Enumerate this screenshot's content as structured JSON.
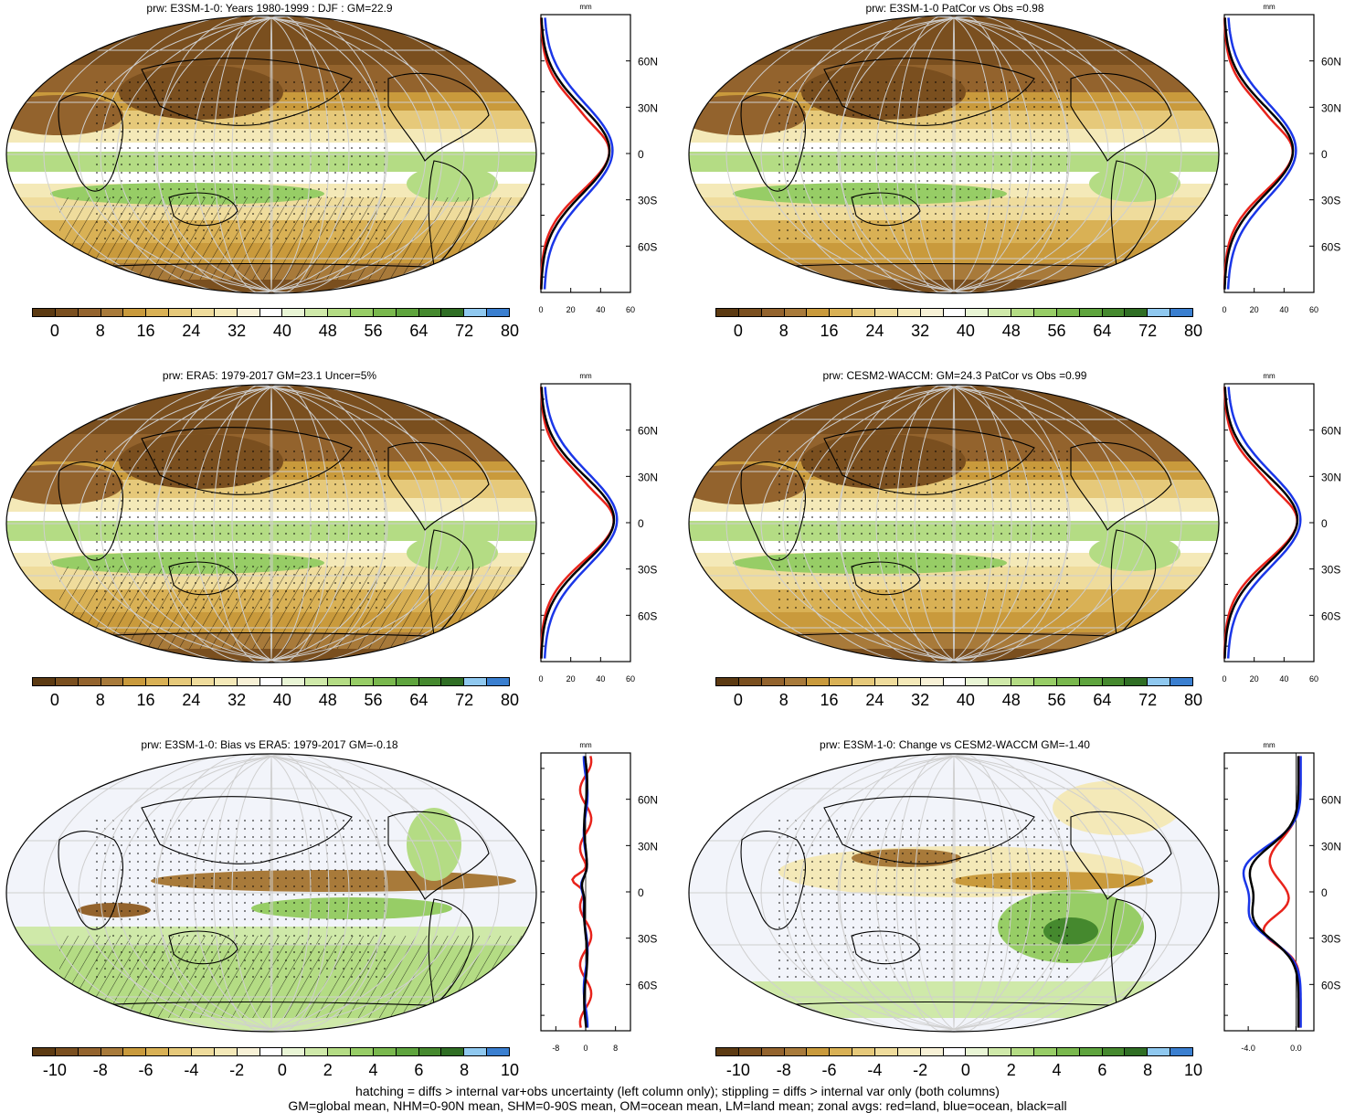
{
  "colors": {
    "abs_scale": [
      "#5c3a12",
      "#7a4f1f",
      "#93632d",
      "#a87a3a",
      "#c99a3c",
      "#d9b155",
      "#e6c97a",
      "#efdc9c",
      "#f4e9b8",
      "#f7f1d6",
      "#ffffff",
      "#e9f5d5",
      "#cfe9a9",
      "#b4dc84",
      "#97cd66",
      "#79b84d",
      "#5ea43d",
      "#45892e",
      "#2f6e24",
      "#8fc8ef",
      "#3a7fd0"
    ],
    "diff_scale": [
      "#5c3a12",
      "#7a4f1f",
      "#93632d",
      "#a87a3a",
      "#c99a3c",
      "#d9b155",
      "#e6c97a",
      "#efdc9c",
      "#f4e9b8",
      "#f7f1d6",
      "#ffffff",
      "#e9f5d5",
      "#cfe9a9",
      "#b4dc84",
      "#97cd66",
      "#79b84d",
      "#5ea43d",
      "#45892e",
      "#2f6e24",
      "#8fc8ef",
      "#3a7fd0"
    ],
    "land": "#e8231b",
    "ocean": "#1a36e8",
    "all": "#000000"
  },
  "panels": [
    {
      "id": "p1",
      "title": "prw: E3SM-1-0: Years 1980-1999 : DJF : GM=22.9",
      "scale": "abs",
      "cb_labels": [
        "0",
        "8",
        "16",
        "24",
        "32",
        "40",
        "48",
        "56",
        "64",
        "72",
        "80"
      ],
      "zonal_unit": "mm",
      "zonal_ticks": [
        "0",
        "20",
        "40",
        "60"
      ],
      "lat_labels": [
        "60N",
        "30N",
        "0",
        "30S",
        "60S"
      ]
    },
    {
      "id": "p2",
      "title": "prw: E3SM-1-0 PatCor vs Obs =0.98",
      "scale": "abs",
      "cb_labels": [
        "0",
        "8",
        "16",
        "24",
        "32",
        "40",
        "48",
        "56",
        "64",
        "72",
        "80"
      ],
      "zonal_unit": "mm",
      "zonal_ticks": [
        "0",
        "20",
        "40",
        "60"
      ],
      "lat_labels": [
        "60N",
        "30N",
        "0",
        "30S",
        "60S"
      ]
    },
    {
      "id": "p3",
      "title": "prw: ERA5: 1979-2017 GM=23.1 Uncer=5%",
      "scale": "abs",
      "cb_labels": [
        "0",
        "8",
        "16",
        "24",
        "32",
        "40",
        "48",
        "56",
        "64",
        "72",
        "80"
      ],
      "zonal_unit": "mm",
      "zonal_ticks": [
        "0",
        "20",
        "40",
        "60"
      ],
      "lat_labels": [
        "60N",
        "30N",
        "0",
        "30S",
        "60S"
      ]
    },
    {
      "id": "p4",
      "title": "prw: CESM2-WACCM: GM=24.3 PatCor vs Obs =0.99",
      "scale": "abs",
      "cb_labels": [
        "0",
        "8",
        "16",
        "24",
        "32",
        "40",
        "48",
        "56",
        "64",
        "72",
        "80"
      ],
      "zonal_unit": "mm",
      "zonal_ticks": [
        "0",
        "20",
        "40",
        "60"
      ],
      "lat_labels": [
        "60N",
        "30N",
        "0",
        "30S",
        "60S"
      ]
    },
    {
      "id": "p5",
      "title": "prw: E3SM-1-0: Bias vs ERA5: 1979-2017 GM=-0.18",
      "scale": "diff",
      "cb_labels": [
        "-10",
        "-8",
        "-6",
        "-4",
        "-2",
        "0",
        "2",
        "4",
        "6",
        "8",
        "10"
      ],
      "zonal_unit": "mm",
      "zonal_ticks": [
        "-8",
        "0",
        "8"
      ],
      "lat_labels": [
        "60N",
        "30N",
        "0",
        "30S",
        "60S"
      ]
    },
    {
      "id": "p6",
      "title": "prw: E3SM-1-0: Change vs CESM2-WACCM GM=-1.40",
      "scale": "diff",
      "cb_labels": [
        "-10",
        "-8",
        "-6",
        "-4",
        "-2",
        "0",
        "2",
        "4",
        "6",
        "8",
        "10"
      ],
      "zonal_unit": "mm",
      "zonal_ticks": [
        "-4.0",
        "0.0"
      ],
      "lat_labels": [
        "60N",
        "30N",
        "0",
        "30S",
        "60S"
      ]
    }
  ],
  "footer": {
    "line1": "hatching = diffs > internal var+obs uncertainty (left column only); stippling = diffs > internal var only (both columns)",
    "line2": "GM=global mean, NHM=0-90N mean, SHM=0-90S mean, OM=ocean mean, LM=land mean; zonal avgs: red=land, blue=ocean, black=all"
  }
}
